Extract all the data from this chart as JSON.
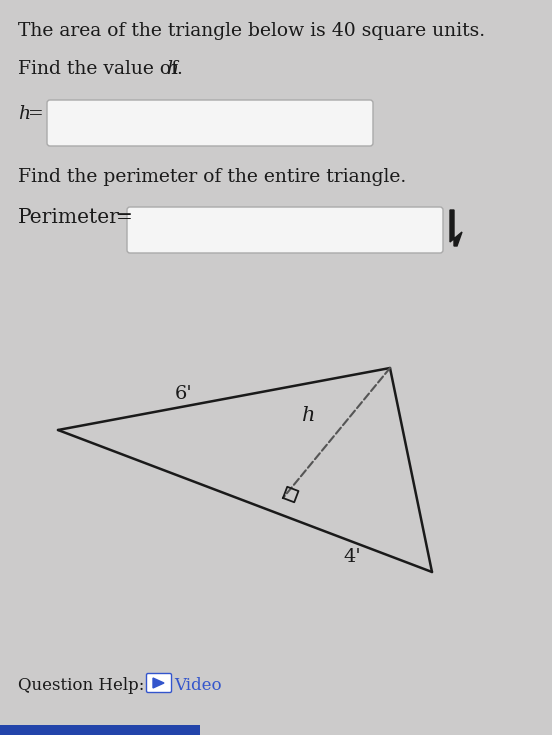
{
  "bg_color": "#cccbcb",
  "text_color": "#1a1a1a",
  "title_line1": "The area of the triangle below is 40 square units.",
  "title_line2_pre": "Find the value of ",
  "title_line2_h": "h",
  "title_line2_post": ".",
  "label_h_eq": "h",
  "label_find_perim": "Find the perimeter of the entire triangle.",
  "label_perim_word": "Perimeter",
  "label_perim_eq": "=",
  "question_help": "Question Help:",
  "video_text": "Video",
  "box_edge_color": "#aaaaaa",
  "box_fill_color": "#f5f5f5",
  "triangle_label_6": "6'",
  "triangle_label_4": "4'",
  "triangle_label_h": "h",
  "line_color": "#1a1a1a",
  "dash_color": "#555555",
  "video_color": "#3355cc",
  "blue_bar_color": "#2244aa",
  "cursor_color": "#1a1a1a"
}
